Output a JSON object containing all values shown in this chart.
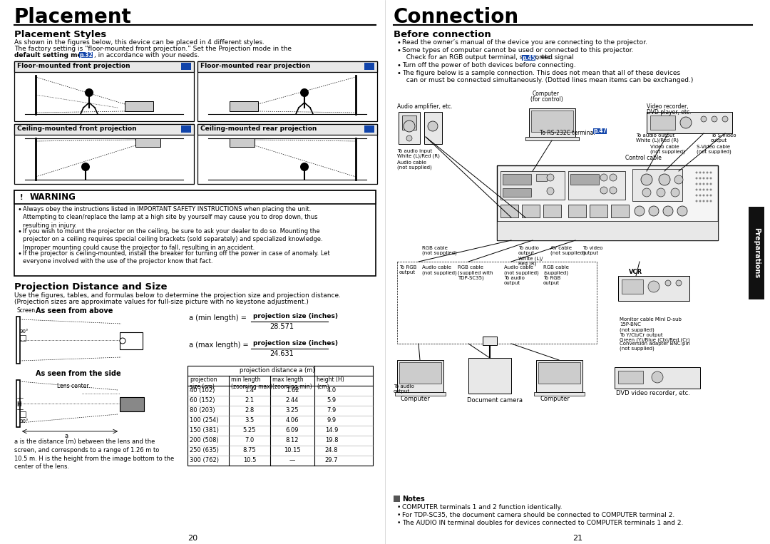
{
  "page_bg": "#ffffff",
  "left_title": "Placement",
  "right_title": "Connection",
  "placement_styles_heading": "Placement Styles",
  "placement_styles_text1": "As shown in the figures below, this device can be placed in 4 different styles.",
  "placement_styles_text2": "The factory setting is “floor-mounted front projection.” Set the Projection mode in the",
  "placement_styles_bold": "default setting menu",
  "placement_styles_p32": "p.32",
  "placement_styles_end": ", in accordance with your needs.",
  "box1_label": "Floor-mounted front projection",
  "box2_label": "Floor-mounted rear projection",
  "box3_label": "Ceiling-mounted front projection",
  "box4_label": "Ceiling-mounted rear projection",
  "warning_title": "WARNING",
  "warning_bullets": [
    "Always obey the instructions listed in IMPORTANT SAFETY INSTRUCTIONS when placing the unit.\nAttempting to clean/replace the lamp at a high site by yourself may cause you to drop down, thus\nresulting in injury.",
    "If you wish to mount the projector on the ceiling, be sure to ask your dealer to do so. Mounting the\nprojector on a ceiling requires special ceiling brackets (sold separately) and specialized knowledge.\nImproper mounting could cause the projector to fall, resulting in an accident.",
    "If the projector is ceiling-mounted, install the breaker for turning off the power in case of anomaly. Let\neveryone involved with the use of the projector know that fact."
  ],
  "proj_dist_heading": "Projection Distance and Size",
  "proj_dist_text1": "Use the figures, tables, and formulas below to determine the projection size and projection distance.",
  "proj_dist_text2": "(Projection sizes are approximate values for full-size picture with no keystone adjustment.)",
  "formula1_label": "a (min length) =",
  "formula1_num": "projection size (inches)",
  "formula1_den": "28.571",
  "formula2_label": "a (max length) =",
  "formula2_num": "projection size (inches)",
  "formula2_den": "24.631",
  "table_span_header": "projection distance a (m)",
  "table_col0": "projection\nsize (cm)",
  "table_col1": "min length\n(zooming max)",
  "table_col2": "max length\n(zooming min)",
  "table_col3": "height (H)\n(cm)",
  "table_rows": [
    [
      "40 (102)",
      "1.4",
      "1.62",
      "4.0"
    ],
    [
      "60 (152)",
      "2.1",
      "2.44",
      "5.9"
    ],
    [
      "80 (203)",
      "2.8",
      "3.25",
      "7.9"
    ],
    [
      "100 (254)",
      "3.5",
      "4.06",
      "9.9"
    ],
    [
      "150 (381)",
      "5.25",
      "6.09",
      "14.9"
    ],
    [
      "200 (508)",
      "7.0",
      "8.12",
      "19.8"
    ],
    [
      "250 (635)",
      "8.75",
      "10.15",
      "24.8"
    ],
    [
      "300 (762)",
      "10.5",
      "—",
      "29.7"
    ]
  ],
  "note_text": "a is the distance (m) between the lens and the\nscreen, and corresponds to a range of 1.26 m to\n10.5 m. H is the height from the image bottom to the\ncenter of the lens.",
  "before_connection_heading": "Before connection",
  "bullet1": "Read the owner’s manual of the device you are connecting to the projector.",
  "bullet2a": "Some types of computer cannot be used or connected to this projector.",
  "bullet2b": "  Check for an RGB output terminal, supported signal ",
  "bullet2c": ", etc.",
  "p45": "p.45",
  "bullet3": "Turn off the power of both devices before connecting.",
  "bullet4a": "The figure below is a sample connection. This does not mean that all of these devices",
  "bullet4b": "  can or must be connected simultaneously. (Dotted lines mean items can be exchanged.)",
  "p47": "p.47",
  "tab_label": "Preparations",
  "notes_heading": "Notes",
  "notes_bullet1": "COMPUTER terminals 1 and 2 function identically.",
  "notes_bullet2": "For TDP-SC35, the document camera should be connected to COMPUTER terminal 2.",
  "notes_bullet3": "The AUDIO IN terminal doubles for devices connected to COMPUTER terminals 1 and 2.",
  "page_left": "20",
  "page_right": "21",
  "blue_bg": "#1144aa",
  "gray_lt": "#e8e8e8",
  "gray_md": "#cccccc",
  "gray_dk": "#888888",
  "black": "#000000",
  "white": "#ffffff"
}
